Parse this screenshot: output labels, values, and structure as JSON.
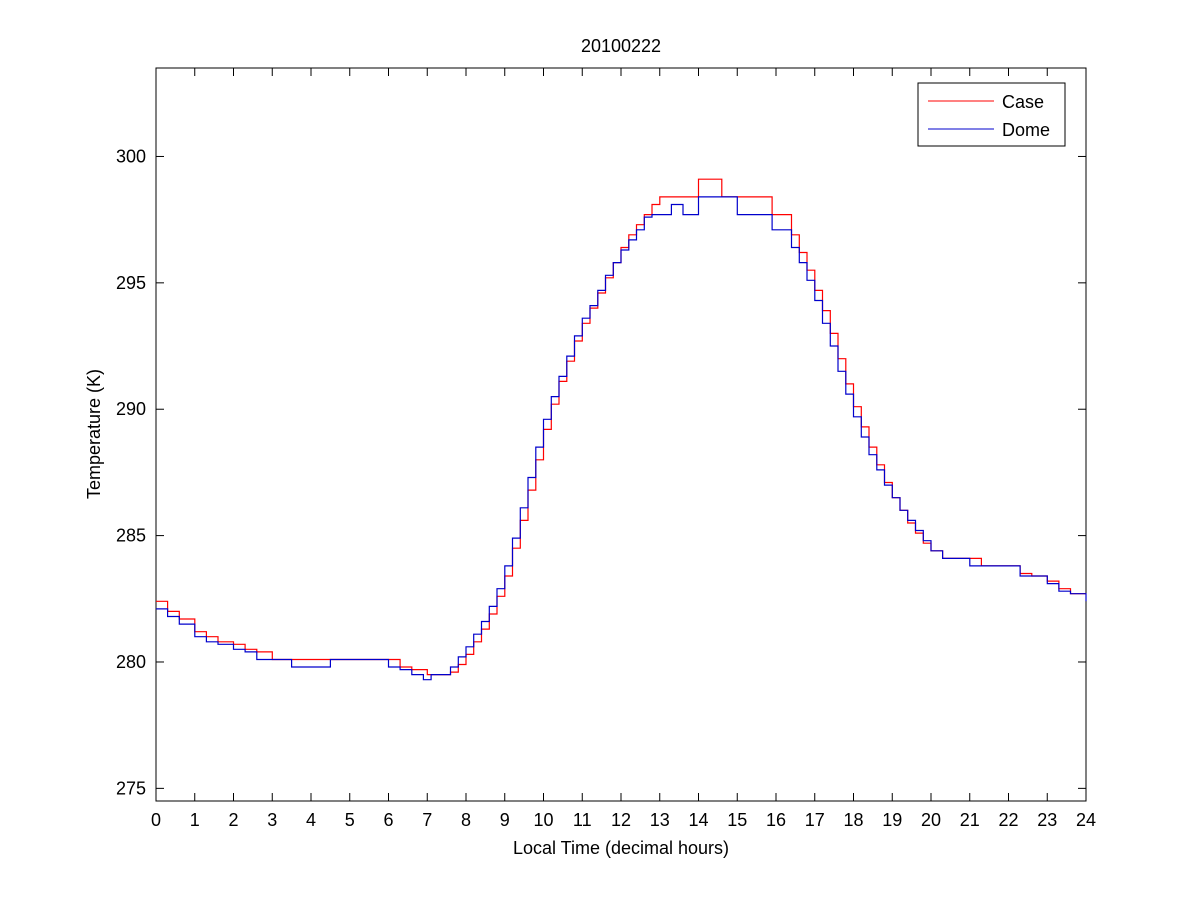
{
  "chart_data": {
    "type": "line",
    "title": "20100222",
    "xlabel": "Local Time (decimal hours)",
    "ylabel": "Temperature (K)",
    "xlim": [
      0,
      24
    ],
    "ylim": [
      274.5,
      303.5
    ],
    "xticks": [
      "0",
      "1",
      "2",
      "3",
      "4",
      "5",
      "6",
      "7",
      "8",
      "9",
      "10",
      "11",
      "12",
      "13",
      "14",
      "15",
      "16",
      "17",
      "18",
      "19",
      "20",
      "21",
      "22",
      "23",
      "24"
    ],
    "yticks": [
      "275",
      "280",
      "285",
      "290",
      "295",
      "300"
    ],
    "grid": false,
    "legend_position": "top-right",
    "series": [
      {
        "name": "Case",
        "color": "#ff0000",
        "x": [
          0,
          0.3,
          0.6,
          1.0,
          1.3,
          1.6,
          2.0,
          2.3,
          2.6,
          3.0,
          3.5,
          4.0,
          4.5,
          5.0,
          5.5,
          6.0,
          6.3,
          6.6,
          7.0,
          7.3,
          7.6,
          7.8,
          8.0,
          8.2,
          8.4,
          8.6,
          8.8,
          9.0,
          9.2,
          9.4,
          9.6,
          9.8,
          10.0,
          10.2,
          10.4,
          10.6,
          10.8,
          11.0,
          11.2,
          11.4,
          11.6,
          11.8,
          12.0,
          12.2,
          12.4,
          12.6,
          12.8,
          13.0,
          13.3,
          13.6,
          14.0,
          14.3,
          14.6,
          15.0,
          15.3,
          15.6,
          15.9,
          16.2,
          16.4,
          16.6,
          16.8,
          17.0,
          17.2,
          17.4,
          17.6,
          17.8,
          18.0,
          18.2,
          18.4,
          18.6,
          18.8,
          19.0,
          19.2,
          19.4,
          19.6,
          19.8,
          20.0,
          20.3,
          20.6,
          21.0,
          21.3,
          21.6,
          22.0,
          22.3,
          22.6,
          23.0,
          23.3,
          23.6,
          24.0
        ],
        "y": [
          282.4,
          282.0,
          281.7,
          281.2,
          281.0,
          280.8,
          280.7,
          280.5,
          280.4,
          280.1,
          280.1,
          280.1,
          280.1,
          280.1,
          280.1,
          280.1,
          279.8,
          279.7,
          279.5,
          279.5,
          279.6,
          279.9,
          280.3,
          280.8,
          281.3,
          281.9,
          282.6,
          283.4,
          284.5,
          285.6,
          286.8,
          288.0,
          289.2,
          290.2,
          291.1,
          291.9,
          292.7,
          293.4,
          294.0,
          294.6,
          295.2,
          295.8,
          296.4,
          296.9,
          297.3,
          297.7,
          298.1,
          298.4,
          298.4,
          298.4,
          299.1,
          299.1,
          298.4,
          298.4,
          298.4,
          298.4,
          297.7,
          297.7,
          296.9,
          296.2,
          295.5,
          294.7,
          293.9,
          293.0,
          292.0,
          291.0,
          290.1,
          289.3,
          288.5,
          287.8,
          287.1,
          286.5,
          286.0,
          285.5,
          285.1,
          284.7,
          284.4,
          284.1,
          284.1,
          284.1,
          283.8,
          283.8,
          283.8,
          283.5,
          283.4,
          283.2,
          282.9,
          282.7,
          282.7
        ]
      },
      {
        "name": "Dome",
        "color": "#0000cc",
        "x": [
          0,
          0.3,
          0.6,
          1.0,
          1.3,
          1.6,
          2.0,
          2.3,
          2.6,
          3.0,
          3.5,
          4.0,
          4.5,
          5.0,
          5.5,
          6.0,
          6.3,
          6.6,
          6.9,
          7.1,
          7.4,
          7.6,
          7.8,
          8.0,
          8.2,
          8.4,
          8.6,
          8.8,
          9.0,
          9.2,
          9.4,
          9.6,
          9.8,
          10.0,
          10.2,
          10.4,
          10.6,
          10.8,
          11.0,
          11.2,
          11.4,
          11.6,
          11.8,
          12.0,
          12.2,
          12.4,
          12.6,
          12.8,
          13.0,
          13.3,
          13.6,
          14.0,
          14.3,
          14.6,
          15.0,
          15.3,
          15.6,
          15.9,
          16.2,
          16.4,
          16.6,
          16.8,
          17.0,
          17.2,
          17.4,
          17.6,
          17.8,
          18.0,
          18.2,
          18.4,
          18.6,
          18.8,
          19.0,
          19.2,
          19.4,
          19.6,
          19.8,
          20.0,
          20.3,
          20.6,
          21.0,
          21.3,
          21.6,
          22.0,
          22.3,
          22.6,
          23.0,
          23.3,
          23.6,
          24.0
        ],
        "y": [
          282.1,
          281.8,
          281.5,
          281.0,
          280.8,
          280.7,
          280.5,
          280.4,
          280.1,
          280.1,
          279.8,
          279.8,
          280.1,
          280.1,
          280.1,
          279.8,
          279.7,
          279.5,
          279.3,
          279.5,
          279.5,
          279.8,
          280.2,
          280.6,
          281.1,
          281.6,
          282.2,
          282.9,
          283.8,
          284.9,
          286.1,
          287.3,
          288.5,
          289.6,
          290.5,
          291.3,
          292.1,
          292.9,
          293.6,
          294.1,
          294.7,
          295.3,
          295.8,
          296.3,
          296.7,
          297.1,
          297.6,
          297.7,
          297.7,
          298.1,
          297.7,
          298.4,
          298.4,
          298.4,
          297.7,
          297.7,
          297.7,
          297.1,
          297.1,
          296.4,
          295.8,
          295.1,
          294.3,
          293.4,
          292.5,
          291.5,
          290.6,
          289.7,
          288.9,
          288.2,
          287.6,
          287.0,
          286.5,
          286.0,
          285.6,
          285.2,
          284.8,
          284.4,
          284.1,
          284.1,
          283.8,
          283.8,
          283.8,
          283.8,
          283.4,
          283.4,
          283.1,
          282.8,
          282.7,
          282.4
        ]
      }
    ]
  }
}
